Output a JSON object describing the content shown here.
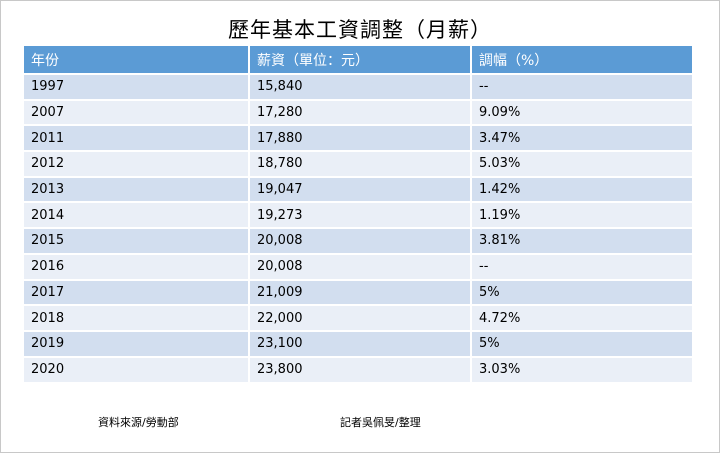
{
  "title": "歷年基本工資調整（月薪）",
  "table": {
    "headers": [
      "年份",
      "薪資（單位：元）",
      "調幅（%）"
    ],
    "rows": [
      {
        "year": "1997",
        "wage": "15,840",
        "change": "--"
      },
      {
        "year": "2007",
        "wage": "17,280",
        "change": "9.09%"
      },
      {
        "year": "2011",
        "wage": "17,880",
        "change": "3.47%"
      },
      {
        "year": "2012",
        "wage": "18,780",
        "change": "5.03%"
      },
      {
        "year": "2013",
        "wage": "19,047",
        "change": "1.42%"
      },
      {
        "year": "2014",
        "wage": "19,273",
        "change": "1.19%"
      },
      {
        "year": "2015",
        "wage": "20,008",
        "change": "3.81%"
      },
      {
        "year": "2016",
        "wage": "20,008",
        "change": "--"
      },
      {
        "year": "2017",
        "wage": "21,009",
        "change": "5%"
      },
      {
        "year": "2018",
        "wage": "22,000",
        "change": "4.72%"
      },
      {
        "year": "2019",
        "wage": "23,100",
        "change": "5%"
      },
      {
        "year": "2020",
        "wage": "23,800",
        "change": "3.03%"
      }
    ]
  },
  "footer": {
    "source": "資料來源/勞動部",
    "reporter": "記者吳佩旻/整理"
  },
  "colors": {
    "header_bg": "#5b9bd5",
    "row_dark": "#d2deef",
    "row_light": "#eaeff7"
  }
}
